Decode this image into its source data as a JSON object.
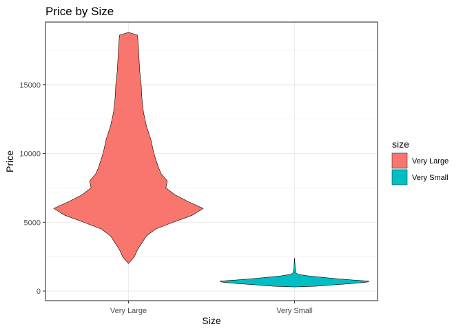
{
  "chart_data": {
    "type": "violin",
    "title": "Price by Size",
    "xlabel": "Size",
    "ylabel": "Price",
    "ylim": [
      -700,
      19550
    ],
    "yticks": [
      0,
      5000,
      10000,
      15000
    ],
    "ytick_labels": [
      "0",
      "5000",
      "10000",
      "15000"
    ],
    "categories": [
      "Very Large",
      "Very Small"
    ],
    "grid": true,
    "legend": {
      "title": "size",
      "position": "right",
      "entries": [
        "Very Large",
        "Very Small"
      ]
    },
    "series": [
      {
        "name": "Very Large",
        "color": "#F8766D",
        "min": 2000,
        "max": 18800,
        "density_profile": [
          {
            "y": 2000,
            "w": 0.0
          },
          {
            "y": 2500,
            "w": 0.08
          },
          {
            "y": 3000,
            "w": 0.12
          },
          {
            "y": 3500,
            "w": 0.18
          },
          {
            "y": 4000,
            "w": 0.24
          },
          {
            "y": 4500,
            "w": 0.36
          },
          {
            "y": 5000,
            "w": 0.6
          },
          {
            "y": 5500,
            "w": 0.85
          },
          {
            "y": 6000,
            "w": 1.0
          },
          {
            "y": 6500,
            "w": 0.8
          },
          {
            "y": 7000,
            "w": 0.62
          },
          {
            "y": 7500,
            "w": 0.5
          },
          {
            "y": 8000,
            "w": 0.52
          },
          {
            "y": 8500,
            "w": 0.44
          },
          {
            "y": 9000,
            "w": 0.4
          },
          {
            "y": 10000,
            "w": 0.34
          },
          {
            "y": 11000,
            "w": 0.3
          },
          {
            "y": 12000,
            "w": 0.24
          },
          {
            "y": 13000,
            "w": 0.2
          },
          {
            "y": 14000,
            "w": 0.18
          },
          {
            "y": 15000,
            "w": 0.17
          },
          {
            "y": 16000,
            "w": 0.15
          },
          {
            "y": 17000,
            "w": 0.14
          },
          {
            "y": 18000,
            "w": 0.13
          },
          {
            "y": 18600,
            "w": 0.12
          },
          {
            "y": 18800,
            "w": 0.0
          }
        ]
      },
      {
        "name": "Very Small",
        "color": "#00BFC4",
        "min": 300,
        "max": 2400,
        "density_profile": [
          {
            "y": 300,
            "w": 0.0
          },
          {
            "y": 350,
            "w": 0.28
          },
          {
            "y": 450,
            "w": 0.52
          },
          {
            "y": 550,
            "w": 0.78
          },
          {
            "y": 650,
            "w": 0.97
          },
          {
            "y": 720,
            "w": 1.0
          },
          {
            "y": 800,
            "w": 0.78
          },
          {
            "y": 900,
            "w": 0.55
          },
          {
            "y": 1000,
            "w": 0.36
          },
          {
            "y": 1100,
            "w": 0.18
          },
          {
            "y": 1200,
            "w": 0.06
          },
          {
            "y": 1300,
            "w": 0.02
          },
          {
            "y": 1600,
            "w": 0.01
          },
          {
            "y": 2000,
            "w": 0.005
          },
          {
            "y": 2400,
            "w": 0.0
          }
        ]
      }
    ]
  }
}
